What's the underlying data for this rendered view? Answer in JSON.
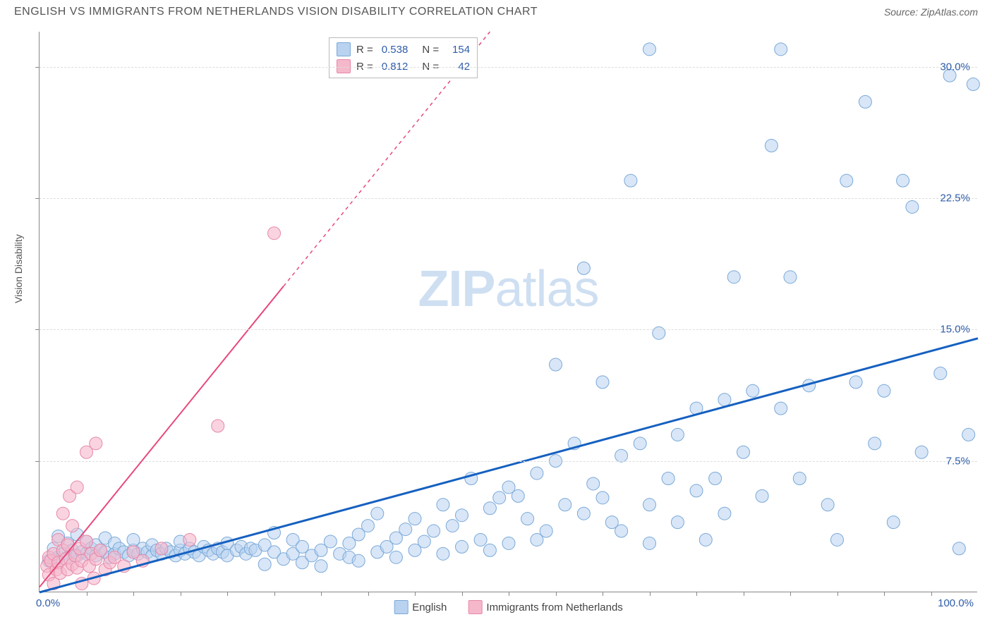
{
  "title": "ENGLISH VS IMMIGRANTS FROM NETHERLANDS VISION DISABILITY CORRELATION CHART",
  "source": "Source: ZipAtlas.com",
  "y_axis_label": "Vision Disability",
  "watermark_bold": "ZIP",
  "watermark_light": "atlas",
  "chart": {
    "type": "scatter",
    "xlim": [
      0,
      100
    ],
    "ylim": [
      0,
      32
    ],
    "x_ticks_label": {
      "0": "0.0%",
      "100": "100.0%"
    },
    "x_minor_ticks": [
      5,
      10,
      15,
      20,
      25,
      30,
      35,
      40,
      45,
      50,
      55,
      60,
      65,
      70,
      75,
      80,
      85,
      90,
      95
    ],
    "y_ticks": [
      {
        "v": 7.5,
        "label": "7.5%"
      },
      {
        "v": 15.0,
        "label": "15.0%"
      },
      {
        "v": 22.5,
        "label": "22.5%"
      },
      {
        "v": 30.0,
        "label": "30.0%"
      }
    ],
    "background_color": "#ffffff",
    "grid_color": "#dddddd",
    "series": [
      {
        "name": "English",
        "color_fill": "#b8d2f0",
        "color_stroke": "#7ba9d8",
        "marker_radius": 9,
        "fill_opacity": 0.55,
        "trend": {
          "x1": 0,
          "y1": 0,
          "x2": 100,
          "y2": 14.5,
          "color": "#1560c0",
          "width": 3,
          "dashed_from_x": null
        },
        "R": "0.538",
        "N": "154",
        "points": [
          [
            1,
            1.8
          ],
          [
            1.5,
            2.5
          ],
          [
            2,
            2.0
          ],
          [
            2,
            3.2
          ],
          [
            2.5,
            2.2
          ],
          [
            3,
            2.0
          ],
          [
            3,
            2.8
          ],
          [
            3.5,
            2.4
          ],
          [
            4,
            2.1
          ],
          [
            4,
            3.3
          ],
          [
            4.5,
            2.3
          ],
          [
            5,
            2.2
          ],
          [
            5,
            2.9
          ],
          [
            5.5,
            2.5
          ],
          [
            6,
            2.1
          ],
          [
            6,
            2.7
          ],
          [
            6.5,
            2.4
          ],
          [
            7,
            2.3
          ],
          [
            7,
            3.1
          ],
          [
            7.5,
            2.0
          ],
          [
            8,
            2.2
          ],
          [
            8,
            2.8
          ],
          [
            8.5,
            2.5
          ],
          [
            9,
            2.3
          ],
          [
            9.5,
            2.1
          ],
          [
            10,
            2.4
          ],
          [
            10,
            3.0
          ],
          [
            10.5,
            2.2
          ],
          [
            11,
            2.5
          ],
          [
            11.5,
            2.3
          ],
          [
            12,
            2.1
          ],
          [
            12,
            2.7
          ],
          [
            12.5,
            2.4
          ],
          [
            13,
            2.2
          ],
          [
            13.5,
            2.5
          ],
          [
            14,
            2.3
          ],
          [
            14.5,
            2.1
          ],
          [
            15,
            2.4
          ],
          [
            15,
            2.9
          ],
          [
            15.5,
            2.2
          ],
          [
            16,
            2.5
          ],
          [
            16.5,
            2.3
          ],
          [
            17,
            2.1
          ],
          [
            17.5,
            2.6
          ],
          [
            18,
            2.4
          ],
          [
            18.5,
            2.2
          ],
          [
            19,
            2.5
          ],
          [
            19.5,
            2.3
          ],
          [
            20,
            2.1
          ],
          [
            20,
            2.8
          ],
          [
            21,
            2.4
          ],
          [
            21.5,
            2.6
          ],
          [
            22,
            2.2
          ],
          [
            22.5,
            2.5
          ],
          [
            23,
            2.4
          ],
          [
            24,
            1.6
          ],
          [
            24,
            2.7
          ],
          [
            25,
            2.3
          ],
          [
            25,
            3.4
          ],
          [
            26,
            1.9
          ],
          [
            27,
            2.2
          ],
          [
            27,
            3.0
          ],
          [
            28,
            1.7
          ],
          [
            28,
            2.6
          ],
          [
            29,
            2.1
          ],
          [
            30,
            2.4
          ],
          [
            30,
            1.5
          ],
          [
            31,
            2.9
          ],
          [
            32,
            2.2
          ],
          [
            33,
            2.0
          ],
          [
            33,
            2.8
          ],
          [
            34,
            3.3
          ],
          [
            34,
            1.8
          ],
          [
            35,
            3.8
          ],
          [
            36,
            2.3
          ],
          [
            36,
            4.5
          ],
          [
            37,
            2.6
          ],
          [
            38,
            3.1
          ],
          [
            38,
            2.0
          ],
          [
            39,
            3.6
          ],
          [
            40,
            2.4
          ],
          [
            40,
            4.2
          ],
          [
            41,
            2.9
          ],
          [
            42,
            3.5
          ],
          [
            43,
            2.2
          ],
          [
            43,
            5.0
          ],
          [
            44,
            3.8
          ],
          [
            45,
            4.4
          ],
          [
            45,
            2.6
          ],
          [
            46,
            6.5
          ],
          [
            47,
            3.0
          ],
          [
            48,
            4.8
          ],
          [
            48,
            2.4
          ],
          [
            49,
            5.4
          ],
          [
            50,
            2.8
          ],
          [
            50,
            6.0
          ],
          [
            51,
            5.5
          ],
          [
            52,
            4.2
          ],
          [
            53,
            6.8
          ],
          [
            54,
            3.5
          ],
          [
            55,
            7.5
          ],
          [
            55,
            13.0
          ],
          [
            56,
            5.0
          ],
          [
            57,
            8.5
          ],
          [
            58,
            4.5
          ],
          [
            58,
            18.5
          ],
          [
            59,
            6.2
          ],
          [
            60,
            5.4
          ],
          [
            60,
            12.0
          ],
          [
            61,
            4.0
          ],
          [
            62,
            7.8
          ],
          [
            62,
            3.5
          ],
          [
            63,
            23.5
          ],
          [
            64,
            8.5
          ],
          [
            65,
            5.0
          ],
          [
            65,
            31.0
          ],
          [
            66,
            14.8
          ],
          [
            67,
            6.5
          ],
          [
            68,
            9.0
          ],
          [
            68,
            4.0
          ],
          [
            70,
            10.5
          ],
          [
            70,
            5.8
          ],
          [
            71,
            3.0
          ],
          [
            72,
            6.5
          ],
          [
            73,
            11.0
          ],
          [
            73,
            4.5
          ],
          [
            74,
            18.0
          ],
          [
            75,
            8.0
          ],
          [
            76,
            11.5
          ],
          [
            77,
            5.5
          ],
          [
            78,
            25.5
          ],
          [
            79,
            10.5
          ],
          [
            79,
            31.0
          ],
          [
            80,
            18.0
          ],
          [
            81,
            6.5
          ],
          [
            82,
            11.8
          ],
          [
            84,
            5.0
          ],
          [
            85,
            3.0
          ],
          [
            86,
            23.5
          ],
          [
            87,
            12.0
          ],
          [
            88,
            28.0
          ],
          [
            89,
            8.5
          ],
          [
            90,
            11.5
          ],
          [
            91,
            4.0
          ],
          [
            92,
            23.5
          ],
          [
            93,
            22.0
          ],
          [
            94,
            8.0
          ],
          [
            96,
            12.5
          ],
          [
            97,
            29.5
          ],
          [
            98,
            2.5
          ],
          [
            99,
            9.0
          ],
          [
            99.5,
            29.0
          ],
          [
            53,
            3.0
          ],
          [
            65,
            2.8
          ]
        ]
      },
      {
        "name": "Immigrants from Netherlands",
        "color_fill": "#f5b8cb",
        "color_stroke": "#e787a8",
        "marker_radius": 9,
        "fill_opacity": 0.6,
        "trend": {
          "x1": 0,
          "y1": 0.3,
          "x2": 48,
          "y2": 32,
          "color": "#e8497a",
          "width": 2,
          "dashed_from_x": 26
        },
        "R": "0.812",
        "N": "42",
        "points": [
          [
            0.8,
            1.5
          ],
          [
            1,
            1.0
          ],
          [
            1,
            2.0
          ],
          [
            1.2,
            1.8
          ],
          [
            1.5,
            0.5
          ],
          [
            1.5,
            2.2
          ],
          [
            1.8,
            1.3
          ],
          [
            2,
            1.7
          ],
          [
            2,
            3.0
          ],
          [
            2.2,
            1.1
          ],
          [
            2.5,
            2.4
          ],
          [
            2.5,
            4.5
          ],
          [
            2.8,
            1.9
          ],
          [
            3,
            1.3
          ],
          [
            3,
            2.7
          ],
          [
            3.2,
            5.5
          ],
          [
            3.5,
            1.6
          ],
          [
            3.5,
            3.8
          ],
          [
            3.8,
            2.1
          ],
          [
            4,
            1.4
          ],
          [
            4,
            6.0
          ],
          [
            4.3,
            2.5
          ],
          [
            4.5,
            1.8
          ],
          [
            4.5,
            0.5
          ],
          [
            5,
            2.9
          ],
          [
            5,
            8.0
          ],
          [
            5.3,
            1.5
          ],
          [
            5.5,
            2.2
          ],
          [
            5.8,
            0.8
          ],
          [
            6,
            8.5
          ],
          [
            6,
            1.9
          ],
          [
            6.5,
            2.4
          ],
          [
            7,
            1.3
          ],
          [
            7.5,
            1.7
          ],
          [
            8,
            2.0
          ],
          [
            9,
            1.5
          ],
          [
            10,
            2.3
          ],
          [
            11,
            1.8
          ],
          [
            13,
            2.5
          ],
          [
            16,
            3.0
          ],
          [
            19,
            9.5
          ],
          [
            25,
            20.5
          ]
        ]
      }
    ],
    "legend_bottom": [
      {
        "label": "English",
        "fill": "#b8d2f0",
        "stroke": "#7ba9d8"
      },
      {
        "label": "Immigrants from Netherlands",
        "fill": "#f5b8cb",
        "stroke": "#e787a8"
      }
    ]
  }
}
